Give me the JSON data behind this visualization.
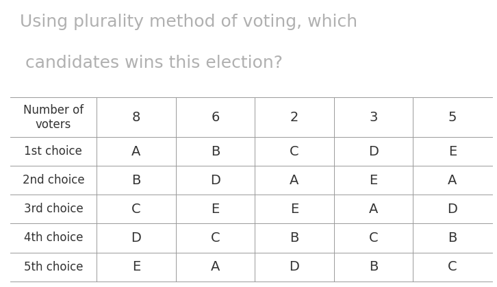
{
  "title_line1": "Using plurality method of voting, which",
  "title_line2": " candidates wins this election?",
  "title_fontsize": 18,
  "title_color": "#b0b0b0",
  "background_color": "#ffffff",
  "row_labels": [
    "Number of\nvoters",
    "1st choice",
    "2nd choice",
    "3rd choice",
    "4th choice",
    "5th choice"
  ],
  "table_data": [
    [
      "8",
      "6",
      "2",
      "3",
      "5"
    ],
    [
      "A",
      "B",
      "C",
      "D",
      "E"
    ],
    [
      "B",
      "D",
      "A",
      "E",
      "A"
    ],
    [
      "C",
      "E",
      "E",
      "A",
      "D"
    ],
    [
      "D",
      "C",
      "B",
      "C",
      "B"
    ],
    [
      "E",
      "A",
      "D",
      "B",
      "C"
    ]
  ],
  "text_color": "#333333",
  "line_color": "#999999",
  "cell_fontsize": 14,
  "label_fontsize": 13,
  "row_label_fontsize": 12
}
